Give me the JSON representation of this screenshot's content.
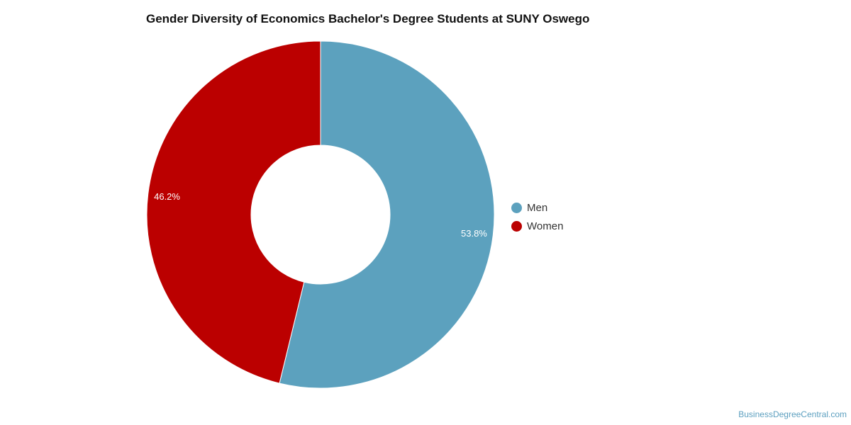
{
  "chart_data": {
    "type": "pie",
    "variant": "donut",
    "title": "Gender Diversity of Economics Bachelor's Degree Students at SUNY Oswego",
    "slices": [
      {
        "label": "Men",
        "value": 53.8,
        "display": "53.8%",
        "color": "#5ca1be"
      },
      {
        "label": "Women",
        "value": 46.2,
        "display": "46.2%",
        "color": "#bb0000"
      }
    ],
    "legend_position": "right"
  },
  "source": "BusinessDegreeCentral.com"
}
